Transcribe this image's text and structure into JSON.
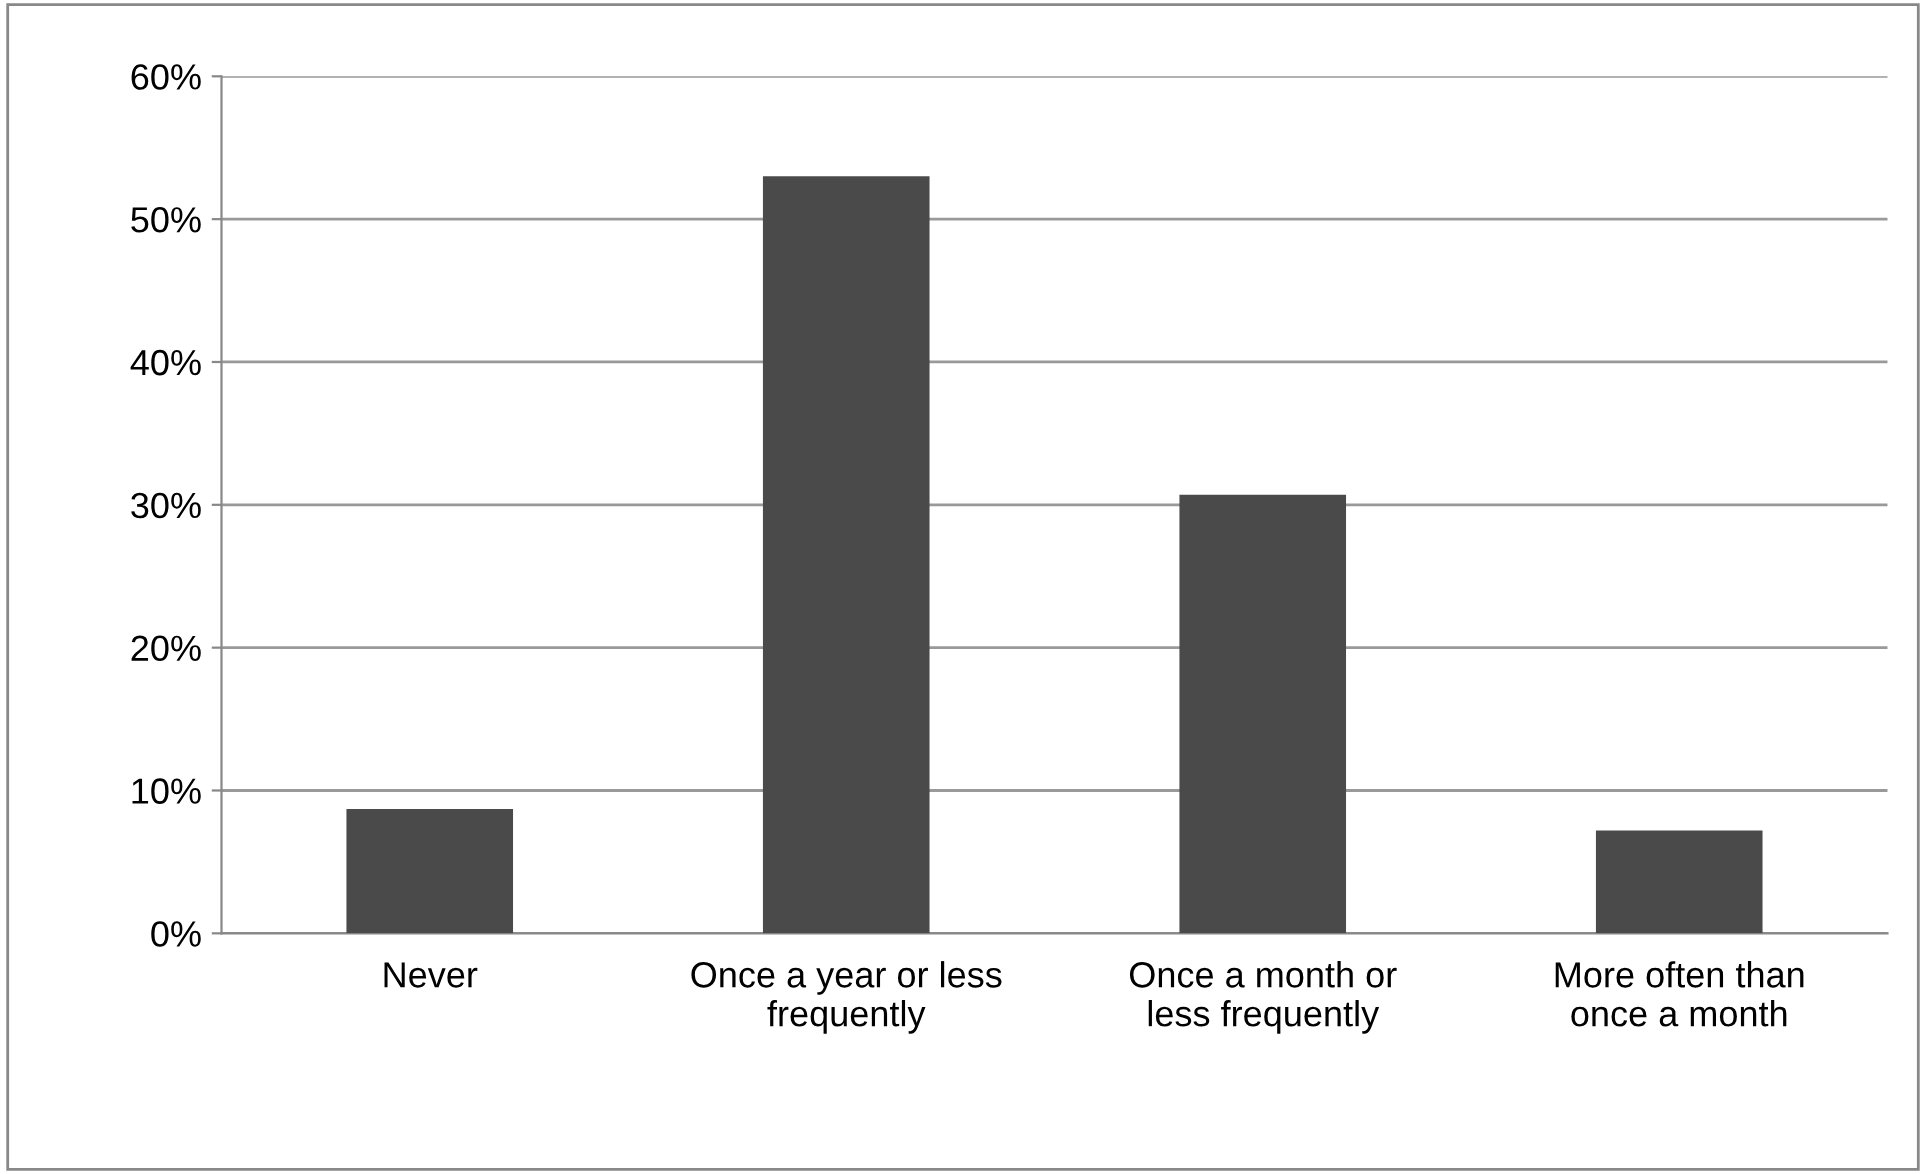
{
  "chart_data": {
    "type": "bar",
    "categories": [
      "Never",
      "Once a year or less\nfrequently",
      "Once a month or\nless frequently",
      "More often than\nonce a month"
    ],
    "values": [
      8.7,
      53.0,
      30.7,
      7.2
    ],
    "color": "#4a4a4a",
    "ylim": [
      0,
      60
    ],
    "yticks": [
      {
        "value": 0,
        "label": "0%"
      },
      {
        "value": 10,
        "label": "10%"
      },
      {
        "value": 20,
        "label": "20%"
      },
      {
        "value": 30,
        "label": "30%"
      },
      {
        "value": 40,
        "label": "40%"
      },
      {
        "value": 50,
        "label": "50%"
      },
      {
        "value": 60,
        "label": "60%"
      }
    ],
    "grid": "y"
  }
}
